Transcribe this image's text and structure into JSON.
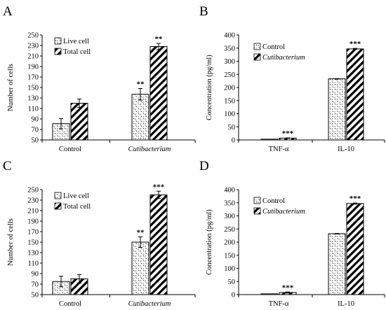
{
  "colors": {
    "axis": "#000000",
    "background": "#ffffff"
  },
  "chart_data": [
    {
      "panel": "A",
      "type": "bar",
      "ylabel": "Number of cells",
      "ylim": [
        50,
        250
      ],
      "yticks": [
        50,
        70,
        90,
        110,
        130,
        150,
        170,
        190,
        210,
        230,
        250
      ],
      "categories": [
        "Control",
        "Cutibacterium"
      ],
      "italic_categories": [
        false,
        true
      ],
      "legend_position": "top-left",
      "series": [
        {
          "name": "Live cell",
          "pattern": "dots",
          "values": [
            81,
            137
          ],
          "errors": [
            10,
            11
          ],
          "stars": [
            "",
            "**"
          ]
        },
        {
          "name": "Total cell",
          "pattern": "hatch",
          "values": [
            120,
            228
          ],
          "errors": [
            8,
            6
          ],
          "stars": [
            "",
            "**"
          ]
        }
      ],
      "italic_series": [
        false,
        false
      ]
    },
    {
      "panel": "B",
      "type": "bar",
      "ylabel": "Concentration (pg/ml)",
      "ylim": [
        0,
        400
      ],
      "yticks": [
        0,
        50,
        100,
        150,
        200,
        250,
        300,
        350,
        400
      ],
      "categories": [
        "TNF-α",
        "IL-10"
      ],
      "italic_categories": [
        false,
        false
      ],
      "legend_position": "top-left",
      "series": [
        {
          "name": "Control",
          "pattern": "dots",
          "values": [
            3,
            233
          ],
          "errors": [
            0,
            1
          ],
          "stars": [
            "",
            ""
          ]
        },
        {
          "name": "Cutibacterium",
          "pattern": "hatch",
          "values": [
            7,
            347
          ],
          "errors": [
            1,
            2
          ],
          "stars": [
            "***",
            "***"
          ]
        }
      ],
      "italic_series": [
        false,
        true
      ]
    },
    {
      "panel": "C",
      "type": "bar",
      "ylabel": "Number of cells",
      "ylim": [
        50,
        250
      ],
      "yticks": [
        50,
        70,
        90,
        110,
        130,
        150,
        170,
        190,
        210,
        230,
        250
      ],
      "categories": [
        "Control",
        "Cutibacterium"
      ],
      "italic_categories": [
        false,
        true
      ],
      "legend_position": "top-left",
      "series": [
        {
          "name": "Live cell",
          "pattern": "dots",
          "values": [
            75,
            150
          ],
          "errors": [
            10,
            10
          ],
          "stars": [
            "",
            "**"
          ]
        },
        {
          "name": "Total cell",
          "pattern": "hatch",
          "values": [
            80,
            240
          ],
          "errors": [
            8,
            7
          ],
          "stars": [
            "",
            "***"
          ]
        }
      ],
      "italic_series": [
        false,
        false
      ]
    },
    {
      "panel": "D",
      "type": "bar",
      "ylabel": "Concentration (pg/ml)",
      "ylim": [
        0,
        400
      ],
      "yticks": [
        0,
        50,
        100,
        150,
        200,
        250,
        300,
        350,
        400
      ],
      "categories": [
        "TNF-α",
        "IL-10"
      ],
      "italic_categories": [
        false,
        false
      ],
      "legend_position": "top-left",
      "series": [
        {
          "name": "Control",
          "pattern": "dots",
          "values": [
            3,
            232
          ],
          "errors": [
            0,
            1
          ],
          "stars": [
            "",
            ""
          ]
        },
        {
          "name": "Cutibacterium",
          "pattern": "hatch",
          "values": [
            8,
            347
          ],
          "errors": [
            2,
            2
          ],
          "stars": [
            "***",
            "***"
          ]
        }
      ],
      "italic_series": [
        false,
        true
      ]
    }
  ]
}
